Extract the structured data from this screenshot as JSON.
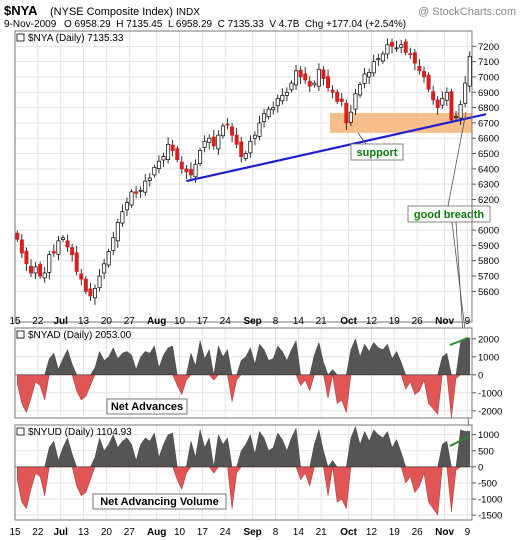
{
  "header": {
    "symbol": "$NYA",
    "name": "(NYSE Composite Index)",
    "exchange": "INDX",
    "watermark": "@ StockCharts.com",
    "date": "9-Nov-2009",
    "quote": "O 6958.29  H 7135.45  L 6958.29  C 7135.33  V 4.7B  Chg +177.04 (+2.54%)"
  },
  "colors": {
    "up_candle": "#ffffff",
    "down_candle": "#d42020",
    "trendline": "#1f1fd0",
    "support_zone": "#f5b77e",
    "area_positive": "#555555",
    "area_negative": "#e25555",
    "breadth_arrow": "#2a8a2a",
    "annotation_text": "#0a7a0a"
  },
  "chart_data": [
    {
      "type": "candlestick",
      "legend": "$NYA (Daily) 7135.33",
      "title": "",
      "ylim": [
        5400,
        7300
      ],
      "yticks": [
        5600,
        5700,
        5800,
        5900,
        6000,
        6100,
        6200,
        6300,
        6400,
        6500,
        6600,
        6700,
        6800,
        6900,
        7000,
        7100,
        7200
      ],
      "ytick_labels": [
        "5600",
        "5700",
        "5800",
        "5900",
        "6000",
        "",
        "6200",
        "6300",
        "6400",
        "6500",
        "6600",
        "6700",
        "6800",
        "6900",
        "7000",
        "7100",
        "7200"
      ],
      "x_labels": [
        "15",
        "22",
        "Jul",
        "13",
        "20",
        "27",
        "Aug",
        "10",
        "17",
        "24",
        "Sep",
        "8",
        "14",
        "21",
        "Oct",
        "12",
        "19",
        "26",
        "Nov",
        "9"
      ],
      "x_label_index": [
        0,
        5,
        10,
        15,
        20,
        25,
        31,
        36,
        41,
        46,
        52,
        57,
        62,
        67,
        73,
        78,
        83,
        88,
        94,
        99
      ],
      "close": [
        5940,
        5850,
        5780,
        5720,
        5760,
        5700,
        5720,
        5840,
        5850,
        5930,
        5950,
        5890,
        5840,
        5730,
        5680,
        5600,
        5570,
        5620,
        5700,
        5780,
        5860,
        5950,
        6050,
        6120,
        6180,
        6250,
        6240,
        6260,
        6320,
        6340,
        6410,
        6450,
        6480,
        6560,
        6520,
        6460,
        6400,
        6380,
        6360,
        6430,
        6520,
        6580,
        6600,
        6550,
        6620,
        6680,
        6690,
        6620,
        6560,
        6480,
        6500,
        6580,
        6620,
        6700,
        6760,
        6790,
        6800,
        6860,
        6880,
        6900,
        6960,
        7040,
        7000,
        6980,
        6940,
        6960,
        7050,
        6990,
        6930,
        6900,
        6840,
        6840,
        6700,
        6770,
        6890,
        6950,
        7020,
        7030,
        7100,
        7120,
        7150,
        7210,
        7200,
        7190,
        7210,
        7160,
        7150,
        7090,
        7040,
        7000,
        6920,
        6850,
        6800,
        6860,
        6900,
        6720,
        6740,
        6820,
        6960,
        7135
      ],
      "annotations": [
        {
          "text": "support"
        },
        {
          "text": "good breadth"
        }
      ]
    },
    {
      "type": "area",
      "legend": "$NYAD (Daily) 2053.00",
      "label": "Net Advances",
      "ylim": [
        -2400,
        2600
      ],
      "yticks": [
        -2000,
        -1000,
        0,
        1000,
        2000
      ],
      "ytick_labels": [
        "-2000",
        "-1000",
        "0",
        "1000",
        "2000"
      ],
      "values": [
        -500,
        -1600,
        -2100,
        -1300,
        -400,
        -600,
        -1400,
        900,
        1200,
        300,
        900,
        1400,
        600,
        -900,
        -1400,
        -1200,
        -600,
        400,
        1300,
        800,
        1000,
        1500,
        900,
        1200,
        1300,
        1100,
        300,
        1000,
        1300,
        1200,
        1600,
        400,
        1100,
        1500,
        1600,
        -600,
        -1100,
        -300,
        1200,
        500,
        1900,
        900,
        1400,
        -300,
        1600,
        1000,
        1400,
        -1500,
        -300,
        800,
        1000,
        1500,
        600,
        1700,
        1400,
        800,
        900,
        1600,
        1300,
        800,
        1400,
        1900,
        -600,
        -300,
        -900,
        1100,
        1800,
        700,
        -1300,
        300,
        -1600,
        -1400,
        -2100,
        1400,
        2000,
        1000,
        1700,
        1300,
        1800,
        1500,
        1400,
        1700,
        900,
        1300,
        700,
        -800,
        -400,
        -1100,
        -900,
        -300,
        -1600,
        -1900,
        -2200,
        1000,
        1200,
        -2400,
        -200,
        1800,
        2050,
        2053
      ]
    },
    {
      "type": "area",
      "legend": "$NYUD (Daily) 1104.93",
      "label": "Net Advancing Volume",
      "ylim": [
        -1650,
        1300
      ],
      "yticks": [
        -1500,
        -1000,
        -500,
        0,
        500,
        1000
      ],
      "ytick_labels": [
        "-1500",
        "-1000",
        "-500",
        "0",
        "500",
        "1000"
      ],
      "values": [
        -400,
        -1100,
        -1300,
        -700,
        -200,
        -300,
        -900,
        600,
        800,
        200,
        600,
        900,
        400,
        -600,
        -900,
        -800,
        -400,
        300,
        900,
        500,
        700,
        1000,
        600,
        800,
        900,
        700,
        200,
        700,
        900,
        800,
        1050,
        300,
        700,
        1000,
        1050,
        -400,
        -700,
        -200,
        800,
        300,
        1150,
        600,
        900,
        -200,
        1000,
        700,
        900,
        -1300,
        -200,
        500,
        700,
        1000,
        400,
        1100,
        900,
        500,
        600,
        1050,
        850,
        500,
        900,
        1200,
        -400,
        -200,
        -600,
        700,
        1150,
        500,
        -900,
        200,
        -1100,
        -1000,
        -1300,
        900,
        1250,
        700,
        1100,
        800,
        1150,
        1000,
        900,
        1100,
        600,
        850,
        450,
        -500,
        -300,
        -800,
        -600,
        -200,
        -1100,
        -1300,
        -1500,
        700,
        800,
        -1400,
        -100,
        1150,
        1100,
        1104.93
      ]
    }
  ]
}
